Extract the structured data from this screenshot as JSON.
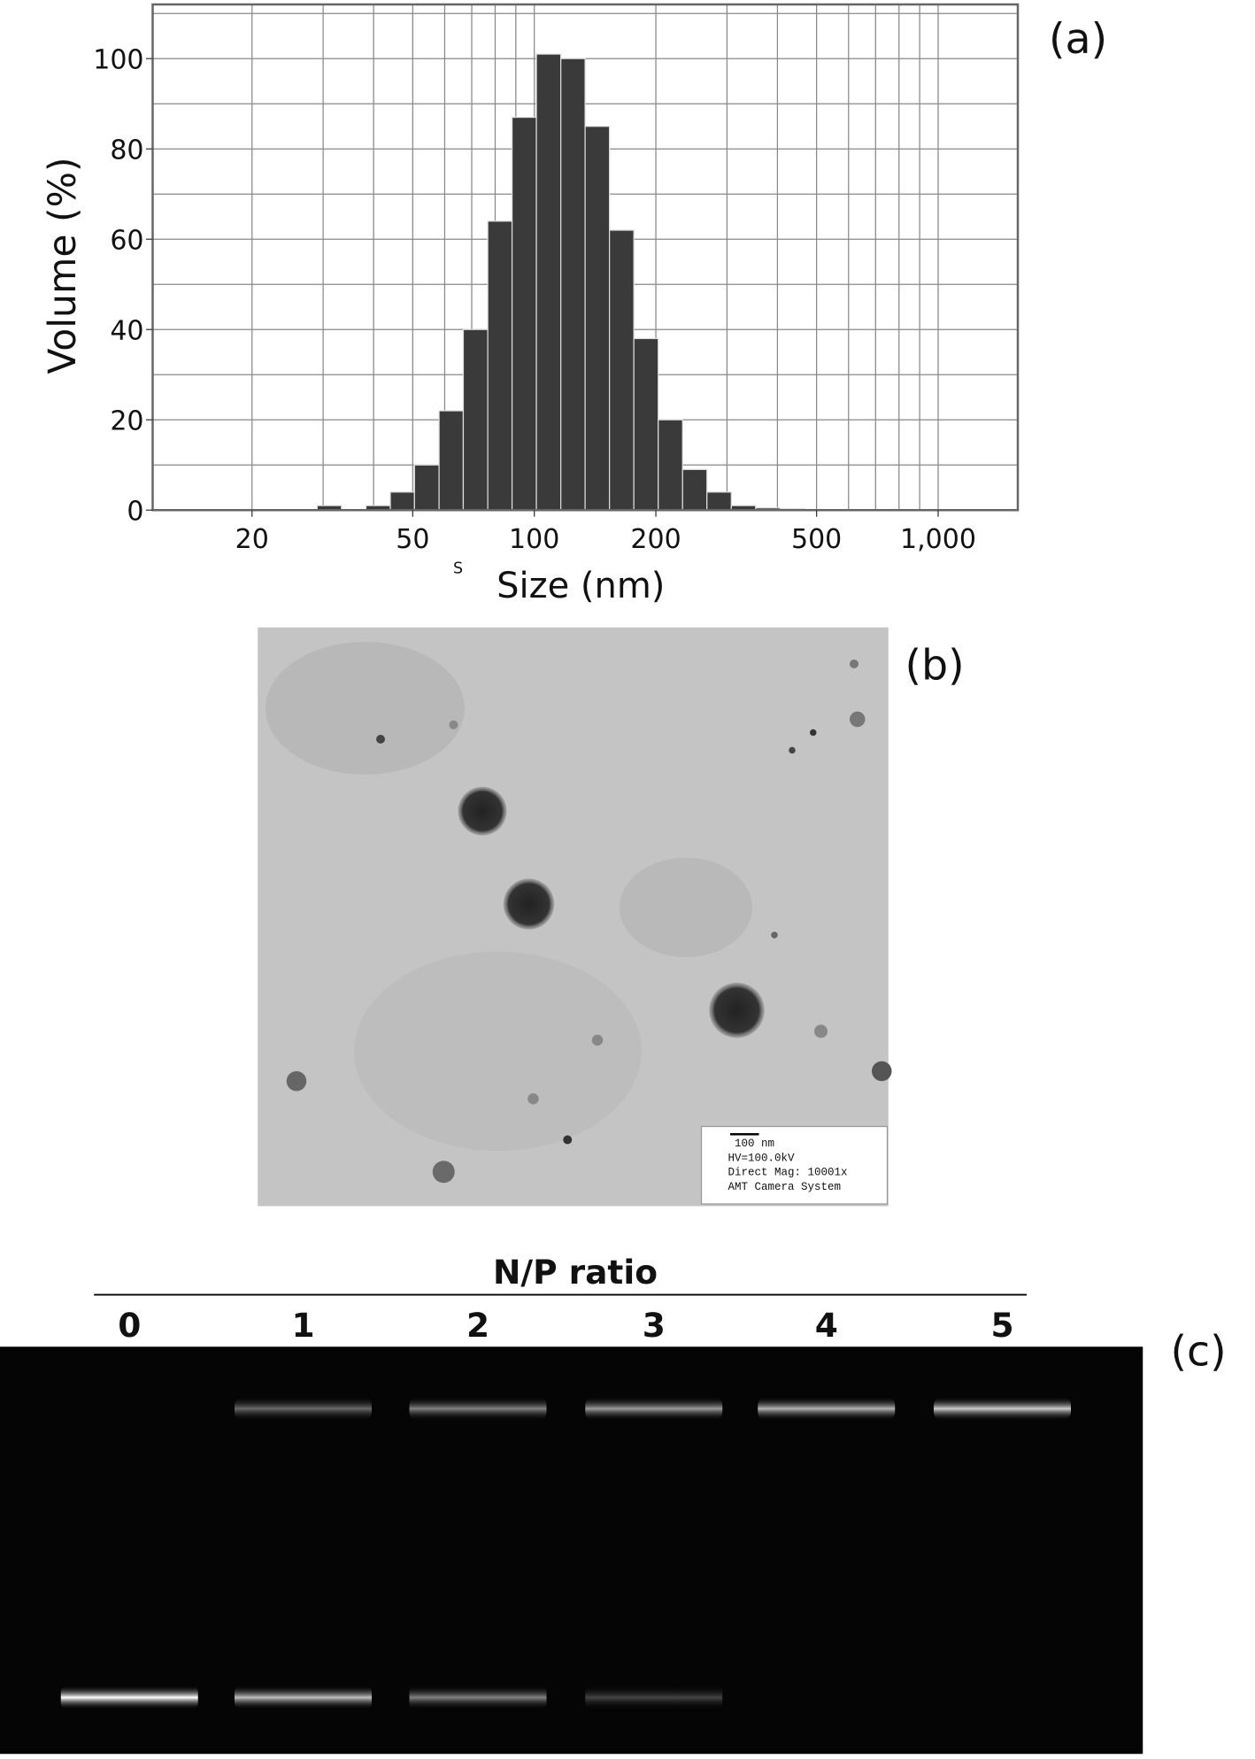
{
  "chart_data": {
    "type": "histogram",
    "panel_label": "(a)",
    "xlabel": "Size (nm)",
    "ylabel": "Volume (%)",
    "stray_mark": "S",
    "bins": [
      29.0,
      33.3,
      38.3,
      44.0,
      50.5,
      58.1,
      66.7,
      76.7,
      88.1,
      101.2,
      116.3,
      133.6,
      153.5,
      176.4,
      202.7,
      232.9,
      267.6,
      307.5,
      353.3,
      406.0,
      466.4
    ],
    "values": [
      1,
      0,
      1,
      4,
      10,
      22,
      40,
      64,
      87,
      101,
      100,
      85,
      62,
      38,
      20,
      9,
      4,
      1,
      0.5,
      0.3
    ],
    "color": "#3a3a3a",
    "xlim": [
      11.35,
      1575
    ],
    "xscale": "log",
    "xticks": [
      20,
      50,
      100,
      200,
      500,
      {
        "value": 1000,
        "label": "1,000"
      }
    ],
    "xgrid": [
      20,
      30,
      40,
      50,
      60,
      70,
      80,
      90,
      100,
      200,
      300,
      400,
      500,
      600,
      700,
      800,
      900,
      1000
    ],
    "ylim": [
      0,
      112
    ],
    "yticks": [
      0,
      20,
      40,
      60,
      80,
      100
    ],
    "ygrid": [
      10,
      20,
      30,
      40,
      50,
      60,
      70,
      80,
      90,
      100,
      110
    ],
    "grid": true
  },
  "tem": {
    "panel_label": "(b)",
    "caption": [
      "100 nm",
      "HV=100.0kV",
      "Direct Mag: 10001x",
      "AMT Camera System"
    ]
  },
  "gel": {
    "panel_label": "(c)",
    "title": "N/P ratio",
    "lanes": [
      "0",
      "1",
      "2",
      "3",
      "4",
      "5"
    ]
  }
}
